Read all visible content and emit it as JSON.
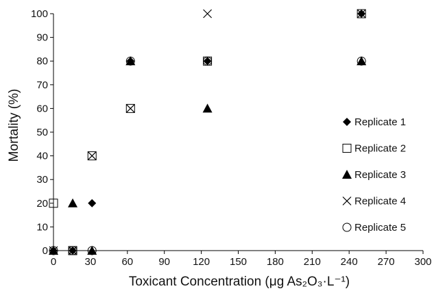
{
  "chart_data": {
    "type": "scatter",
    "title": "",
    "xlabel": "Toxicant Concentration (μg As₂O₃·L⁻¹)",
    "ylabel": "Mortality (%)",
    "xlim": [
      0,
      300
    ],
    "ylim": [
      0,
      100
    ],
    "xticks": [
      0,
      30,
      60,
      90,
      120,
      150,
      180,
      210,
      240,
      270,
      300
    ],
    "yticks": [
      0,
      10,
      20,
      30,
      40,
      50,
      60,
      70,
      80,
      90,
      100
    ],
    "grid": false,
    "legend_position": "right",
    "series": [
      {
        "name": "Replicate 1",
        "marker": "diamond-filled",
        "x": [
          0,
          15.6,
          31.3,
          62.5,
          125,
          250
        ],
        "y": [
          0,
          0,
          20,
          80,
          80,
          100
        ]
      },
      {
        "name": "Replicate 2",
        "marker": "square-open",
        "x": [
          0,
          15.6,
          31.3,
          62.5,
          125,
          250
        ],
        "y": [
          20,
          0,
          40,
          60,
          80,
          100
        ]
      },
      {
        "name": "Replicate 3",
        "marker": "triangle-filled",
        "x": [
          0,
          15.6,
          31.3,
          62.5,
          125,
          250
        ],
        "y": [
          0,
          20,
          0,
          80,
          60,
          80
        ]
      },
      {
        "name": "Replicate 4",
        "marker": "x",
        "x": [
          0,
          15.6,
          31.3,
          62.5,
          125,
          250
        ],
        "y": [
          0,
          0,
          40,
          60,
          100,
          100
        ]
      },
      {
        "name": "Replicate 5",
        "marker": "circle-open",
        "x": [
          0,
          15.6,
          31.3,
          62.5,
          125,
          250
        ],
        "y": [
          0,
          0,
          0,
          80,
          80,
          80
        ]
      }
    ]
  }
}
